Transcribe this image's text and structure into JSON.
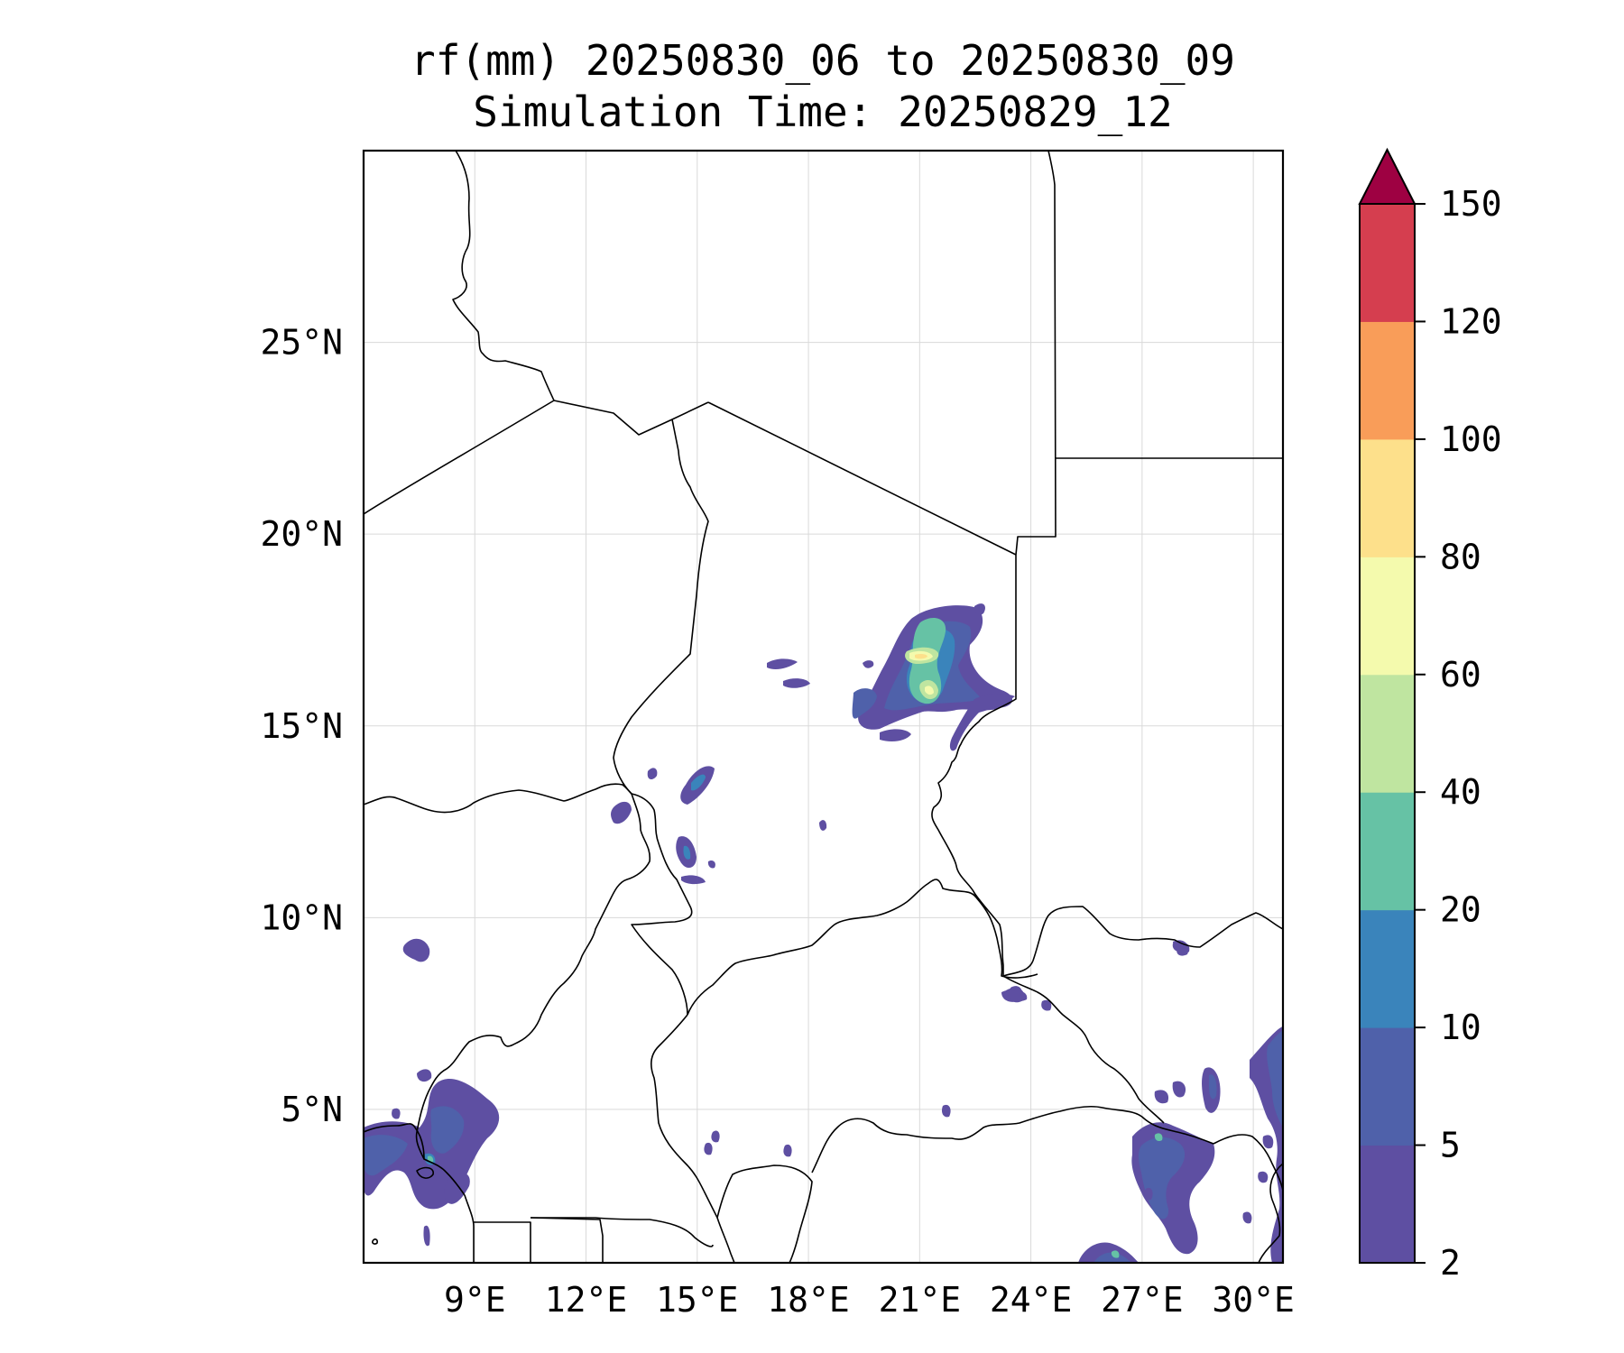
{
  "title": {
    "line1": "rf(mm) 20250830_06 to 20250830_09",
    "line2": "Simulation Time: 20250829_12"
  },
  "map": {
    "lon_range": [
      6.0,
      30.8
    ],
    "lat_range": [
      1.0,
      30.0
    ],
    "lon_ticks": [
      {
        "value": 9,
        "label": "9°E"
      },
      {
        "value": 12,
        "label": "12°E"
      },
      {
        "value": 15,
        "label": "15°E"
      },
      {
        "value": 18,
        "label": "18°E"
      },
      {
        "value": 21,
        "label": "21°E"
      },
      {
        "value": 24,
        "label": "24°E"
      },
      {
        "value": 27,
        "label": "27°E"
      },
      {
        "value": 30,
        "label": "30°E"
      }
    ],
    "lat_ticks": [
      {
        "value": 5,
        "label": "5°N"
      },
      {
        "value": 10,
        "label": "10°N"
      },
      {
        "value": 15,
        "label": "15°N"
      },
      {
        "value": 20,
        "label": "20°N"
      },
      {
        "value": 25,
        "label": "25°N"
      }
    ],
    "gridlines": true
  },
  "colorbar": {
    "levels": [
      2,
      5,
      10,
      20,
      40,
      60,
      80,
      100,
      120,
      150
    ],
    "labels": [
      "2",
      "5",
      "10",
      "20",
      "40",
      "60",
      "80",
      "100",
      "120",
      "150"
    ],
    "colors": [
      "#5e4fa2",
      "#4f61aa",
      "#3a84bb",
      "#66c2a5",
      "#bfe5a0",
      "#f4faad",
      "#fde08b",
      "#f99d59",
      "#d53e4f"
    ],
    "extend_color": "#9e0142",
    "extend": "max"
  }
}
